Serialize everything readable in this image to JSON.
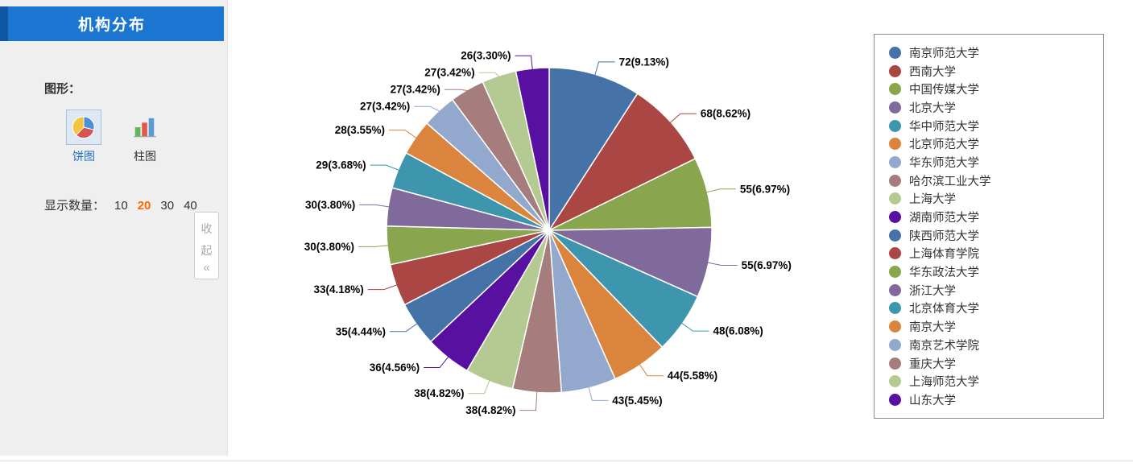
{
  "sidebar": {
    "title": "机构分布",
    "graph_label": "图形：",
    "chart_types": [
      {
        "label": "饼图",
        "selected": true
      },
      {
        "label": "柱图",
        "selected": false
      }
    ],
    "count_label": "显示数量：",
    "count_options": [
      {
        "label": "10",
        "selected": false
      },
      {
        "label": "20",
        "selected": true
      },
      {
        "label": "30",
        "selected": false
      },
      {
        "label": "40",
        "selected": false
      }
    ],
    "collapse": {
      "char1": "收",
      "char2": "起",
      "arrow": "«"
    }
  },
  "chart_data": {
    "type": "pie",
    "title": "机构分布",
    "legend_position": "right",
    "categories": [
      "南京师范大学",
      "西南大学",
      "中国传媒大学",
      "北京大学",
      "华中师范大学",
      "北京师范大学",
      "华东师范大学",
      "哈尔滨工业大学",
      "上海大学",
      "湖南师范大学",
      "陕西师范大学",
      "上海体育学院",
      "华东政法大学",
      "浙江大学",
      "北京体育大学",
      "南京大学",
      "南京艺术学院",
      "重庆大学",
      "上海师范大学",
      "山东大学"
    ],
    "values": [
      72,
      68,
      55,
      55,
      48,
      44,
      43,
      38,
      38,
      36,
      35,
      33,
      30,
      30,
      29,
      28,
      27,
      27,
      27,
      26
    ],
    "percentages": [
      9.13,
      8.62,
      6.97,
      6.97,
      6.08,
      5.58,
      5.45,
      4.82,
      4.82,
      4.56,
      4.44,
      4.18,
      3.8,
      3.8,
      3.68,
      3.55,
      3.42,
      3.42,
      3.42,
      3.3
    ],
    "labels": [
      "72(9.13%)",
      "68(8.62%)",
      "55(6.97%)",
      "55(6.97%)",
      "48(6.08%)",
      "44(5.58%)",
      "43(5.45%)",
      "38(4.82%)",
      "38(4.82%)",
      "36(4.56%)",
      "35(4.44%)",
      "33(4.18%)",
      "30(3.80%)",
      "30(3.80%)",
      "29(3.68%)",
      "28(3.55%)",
      "27(3.42%)",
      "27(3.42%)",
      "27(3.42%)",
      "26(3.30%)"
    ],
    "colors": [
      "#4572A7",
      "#AA4643",
      "#89A54E",
      "#80699B",
      "#3D96AE",
      "#DB843D",
      "#92A8CD",
      "#A47D7C",
      "#B5CA92",
      "#5710A0"
    ],
    "header_blue": "#1b76d2",
    "selected_count_color": "#ff6600"
  }
}
